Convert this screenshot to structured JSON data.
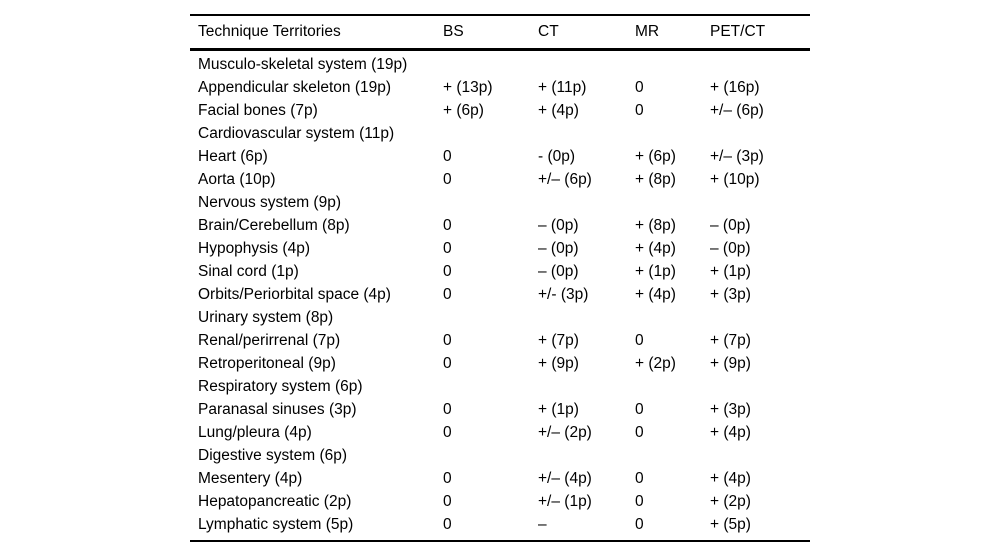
{
  "table": {
    "columns": [
      "Technique Territories",
      "BS",
      "CT",
      "MR",
      "PET/CT"
    ],
    "rows": [
      [
        "Musculo-skeletal system (19p)",
        "",
        "",
        "",
        ""
      ],
      [
        "Appendicular skeleton (19p)",
        "+ (13p)",
        "+ (11p)",
        "0",
        "+ (16p)"
      ],
      [
        "Facial bones (7p)",
        "+ (6p)",
        "+ (4p)",
        "0",
        "+/– (6p)"
      ],
      [
        "Cardiovascular system (11p)",
        "",
        "",
        "",
        ""
      ],
      [
        "Heart (6p)",
        "0",
        "- (0p)",
        "+ (6p)",
        "+/– (3p)"
      ],
      [
        "Aorta (10p)",
        "0",
        "+/– (6p)",
        "+ (8p)",
        "+ (10p)"
      ],
      [
        "Nervous system (9p)",
        "",
        "",
        "",
        ""
      ],
      [
        "Brain/Cerebellum (8p)",
        "0",
        "– (0p)",
        "+ (8p)",
        "– (0p)"
      ],
      [
        "Hypophysis (4p)",
        "0",
        "– (0p)",
        "+ (4p)",
        "– (0p)"
      ],
      [
        "Sinal cord (1p)",
        "0",
        "– (0p)",
        "+ (1p)",
        "+ (1p)"
      ],
      [
        "Orbits/Periorbital space (4p)",
        "0",
        "+/- (3p)",
        "+ (4p)",
        "+ (3p)"
      ],
      [
        "Urinary system (8p)",
        "",
        "",
        "",
        ""
      ],
      [
        "Renal/perirrenal (7p)",
        "0",
        "+ (7p)",
        "0",
        "+ (7p)"
      ],
      [
        "Retroperitoneal (9p)",
        "0",
        "+ (9p)",
        "+ (2p)",
        "+ (9p)"
      ],
      [
        "Respiratory system (6p)",
        "",
        "",
        "",
        ""
      ],
      [
        "Paranasal sinuses (3p)",
        "0",
        "+ (1p)",
        "0",
        "+ (3p)"
      ],
      [
        "Lung/pleura (4p)",
        "0",
        "+/– (2p)",
        "0",
        "+ (4p)"
      ],
      [
        "Digestive system (6p)",
        "",
        "",
        "",
        ""
      ],
      [
        "Mesentery (4p)",
        "0",
        "+/– (4p)",
        "0",
        "+ (4p)"
      ],
      [
        "Hepatopancreatic (2p)",
        "0",
        "+/– (1p)",
        "0",
        "+ (2p)"
      ],
      [
        "Lymphatic system (5p)",
        "0",
        "–",
        "0",
        "+ (5p)"
      ]
    ],
    "colors": {
      "text": "#000000",
      "background": "#ffffff",
      "rule": "#000000"
    }
  }
}
